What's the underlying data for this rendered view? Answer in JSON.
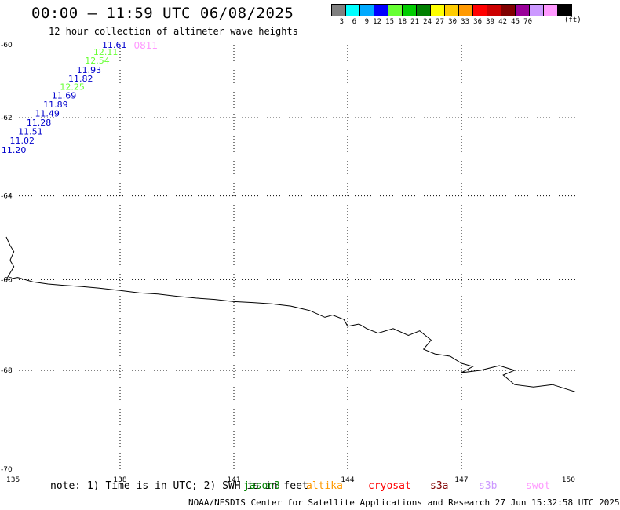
{
  "title": "00:00 – 11:59 UTC 06/08/2025",
  "subtitle": "12 hour collection of altimeter wave heights",
  "color_scale": {
    "colors": [
      "#808080",
      "#00ffff",
      "#00aaff",
      "#0000ff",
      "#66ff33",
      "#00cc00",
      "#008000",
      "#ffff00",
      "#ffcc00",
      "#ff9900",
      "#ff0000",
      "#cc0000",
      "#800000",
      "#990099",
      "#cc99ff",
      "#ff99ff",
      "#000000"
    ],
    "labels": [
      "3",
      "6",
      "9",
      "12",
      "15",
      "18",
      "21",
      "24",
      "27",
      "30",
      "33",
      "36",
      "39",
      "42",
      "45",
      "70"
    ],
    "unit": "(ft)"
  },
  "map": {
    "lon_range": [
      135,
      150
    ],
    "lat_range": [
      -70,
      -60
    ],
    "lon_ticks": [
      "135",
      "138",
      "141",
      "144",
      "147",
      "150"
    ],
    "lat_ticks": [
      "-60",
      "-62",
      "-64",
      "-66",
      "-68",
      "-70"
    ],
    "grid": "dotted"
  },
  "track": {
    "label": "0811",
    "label_color": "#ff99ff",
    "points": [
      {
        "lon": 137.85,
        "lat": -60.0,
        "value": "11.61",
        "color": "#0000cc"
      },
      {
        "lon": 137.62,
        "lat": -60.2,
        "value": "12.11",
        "color": "#66ff33"
      },
      {
        "lon": 137.4,
        "lat": -60.44,
        "value": "12.54",
        "color": "#66ff33"
      },
      {
        "lon": 137.18,
        "lat": -60.7,
        "value": "11.93",
        "color": "#0000cc"
      },
      {
        "lon": 136.96,
        "lat": -60.94,
        "value": "11.82",
        "color": "#0000cc"
      },
      {
        "lon": 136.74,
        "lat": -61.16,
        "value": "12.25",
        "color": "#66ff33"
      },
      {
        "lon": 136.52,
        "lat": -61.4,
        "value": "11.69",
        "color": "#0000cc"
      },
      {
        "lon": 136.3,
        "lat": -61.64,
        "value": "11.89",
        "color": "#0000cc"
      },
      {
        "lon": 136.08,
        "lat": -61.88,
        "value": "11.49",
        "color": "#0000cc"
      },
      {
        "lon": 135.86,
        "lat": -62.12,
        "value": "11.28",
        "color": "#0000cc"
      },
      {
        "lon": 135.64,
        "lat": -62.36,
        "value": "11.51",
        "color": "#0000cc"
      },
      {
        "lon": 135.42,
        "lat": -62.6,
        "value": "11.02",
        "color": "#0000cc"
      },
      {
        "lon": 135.2,
        "lat": -62.84,
        "value": "11.20",
        "color": "#0000cc"
      }
    ]
  },
  "coastline": [
    [
      135.0,
      -65.0
    ],
    [
      135.1,
      -65.2
    ],
    [
      135.2,
      -65.35
    ],
    [
      135.1,
      -65.55
    ],
    [
      135.2,
      -65.7
    ],
    [
      135.1,
      -65.85
    ],
    [
      135.0,
      -66.0
    ],
    [
      135.3,
      -65.95
    ],
    [
      135.7,
      -66.05
    ],
    [
      136.1,
      -66.1
    ],
    [
      136.5,
      -66.13
    ],
    [
      137.0,
      -66.16
    ],
    [
      137.5,
      -66.2
    ],
    [
      138.0,
      -66.25
    ],
    [
      138.5,
      -66.3
    ],
    [
      139.0,
      -66.33
    ],
    [
      139.5,
      -66.38
    ],
    [
      140.0,
      -66.42
    ],
    [
      140.5,
      -66.45
    ],
    [
      141.0,
      -66.5
    ],
    [
      141.5,
      -66.52
    ],
    [
      142.0,
      -66.55
    ],
    [
      142.5,
      -66.6
    ],
    [
      143.0,
      -66.7
    ],
    [
      143.4,
      -66.85
    ],
    [
      143.6,
      -66.8
    ],
    [
      143.9,
      -66.9
    ],
    [
      144.0,
      -67.05
    ],
    [
      144.3,
      -67.0
    ],
    [
      144.5,
      -67.1
    ],
    [
      144.8,
      -67.2
    ],
    [
      145.2,
      -67.1
    ],
    [
      145.6,
      -67.25
    ],
    [
      145.9,
      -67.15
    ],
    [
      146.2,
      -67.35
    ],
    [
      146.0,
      -67.55
    ],
    [
      146.3,
      -67.65
    ],
    [
      146.7,
      -67.7
    ],
    [
      147.0,
      -67.85
    ],
    [
      147.3,
      -67.92
    ],
    [
      147.0,
      -68.05
    ],
    [
      147.5,
      -68.0
    ],
    [
      148.0,
      -67.9
    ],
    [
      148.4,
      -68.0
    ],
    [
      148.1,
      -68.1
    ],
    [
      148.4,
      -68.3
    ],
    [
      148.9,
      -68.35
    ],
    [
      149.4,
      -68.3
    ],
    [
      149.8,
      -68.4
    ],
    [
      150.0,
      -68.45
    ]
  ],
  "note": "note: 1) Time is in UTC; 2) SWH is in feet",
  "satellites": [
    {
      "name": "jason3",
      "color": "#008000"
    },
    {
      "name": "altika",
      "color": "#ff9900"
    },
    {
      "name": "cryosat",
      "color": "#ff0000"
    },
    {
      "name": "s3a",
      "color": "#800000"
    },
    {
      "name": "s3b",
      "color": "#cc99ff"
    },
    {
      "name": "swot",
      "color": "#ff99ff"
    }
  ],
  "footer": "NOAA/NESDIS Center for Satellite Applications and Research    27 Jun 15:32:58 UTC 2025"
}
